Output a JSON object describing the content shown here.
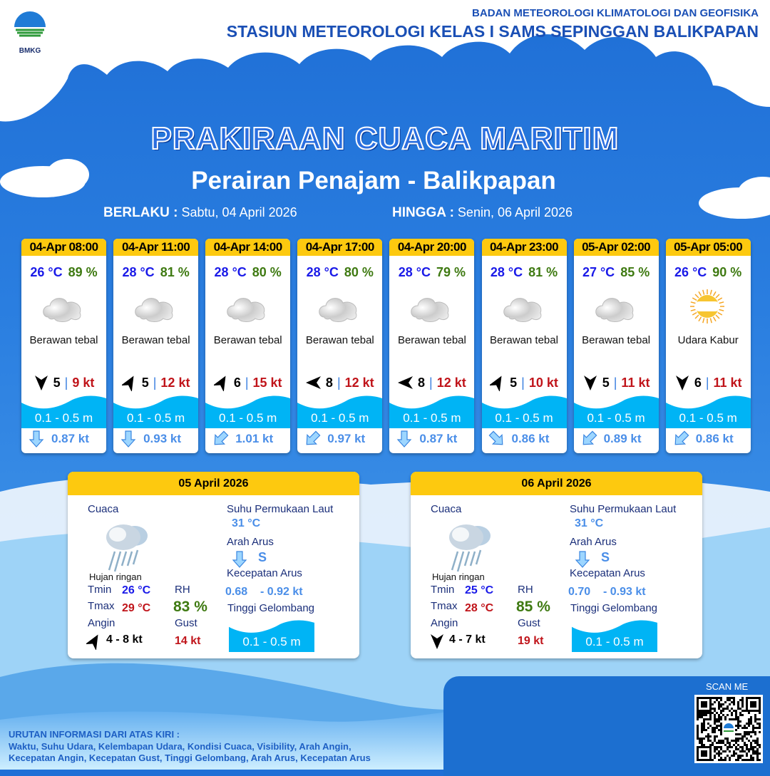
{
  "header": {
    "logo_text": "BMKG",
    "org": "BADAN METEOROLOGI KLIMATOLOGI DAN GEOFISIKA",
    "station": "STASIUN METEOROLOGI KELAS I SAMS SEPINGGAN BALIKPAPAN"
  },
  "title": "PRAKIRAAN CUACA MARITIM",
  "subtitle": "Perairan Penajam - Balikpapan",
  "validity": {
    "from_label": "BERLAKU :",
    "from": "Sabtu, 04 April 2026",
    "to_label": "HINGGA :",
    "to": "Senin, 06 April 2026"
  },
  "colors": {
    "header_yellow": "#fdc90f",
    "temp": "#1a1ae8",
    "rh": "#3f7a12",
    "gust": "#c0141a",
    "wave": "#00b4f5",
    "current": "#4a8ee8"
  },
  "forecasts": [
    {
      "time": "04-Apr 08:00",
      "temp": "26 °C",
      "rh": "89 %",
      "icon": "cloud-icon",
      "cond": "Berawan tebal",
      "wind_dir_deg": 180,
      "wind": "5",
      "gust": "9 kt",
      "wave": "0.1 - 0.5 m",
      "cur_dir_deg": 180,
      "cur": "0.87 kt"
    },
    {
      "time": "04-Apr 11:00",
      "temp": "28 °C",
      "rh": "81 %",
      "icon": "cloud-icon",
      "cond": "Berawan tebal",
      "wind_dir_deg": 30,
      "wind": "5",
      "gust": "12 kt",
      "wave": "0.1 - 0.5 m",
      "cur_dir_deg": 180,
      "cur": "0.93 kt"
    },
    {
      "time": "04-Apr 14:00",
      "temp": "28 °C",
      "rh": "80 %",
      "icon": "cloud-icon",
      "cond": "Berawan tebal",
      "wind_dir_deg": 30,
      "wind": "6",
      "gust": "15 kt",
      "wave": "0.1 - 0.5 m",
      "cur_dir_deg": 225,
      "cur": "1.01 kt"
    },
    {
      "time": "04-Apr 17:00",
      "temp": "28 °C",
      "rh": "80 %",
      "icon": "cloud-icon",
      "cond": "Berawan tebal",
      "wind_dir_deg": 270,
      "wind": "8",
      "gust": "12 kt",
      "wave": "0.1 - 0.5 m",
      "cur_dir_deg": 225,
      "cur": "0.97 kt"
    },
    {
      "time": "04-Apr 20:00",
      "temp": "28 °C",
      "rh": "79 %",
      "icon": "cloud-icon",
      "cond": "Berawan tebal",
      "wind_dir_deg": 270,
      "wind": "8",
      "gust": "12 kt",
      "wave": "0.1 - 0.5 m",
      "cur_dir_deg": 180,
      "cur": "0.87 kt"
    },
    {
      "time": "04-Apr 23:00",
      "temp": "28 °C",
      "rh": "81 %",
      "icon": "cloud-icon",
      "cond": "Berawan tebal",
      "wind_dir_deg": 30,
      "wind": "5",
      "gust": "10 kt",
      "wave": "0.1 - 0.5 m",
      "cur_dir_deg": 135,
      "cur": "0.86 kt"
    },
    {
      "time": "05-Apr 02:00",
      "temp": "27 °C",
      "rh": "85 %",
      "icon": "cloud-icon",
      "cond": "Berawan tebal",
      "wind_dir_deg": 180,
      "wind": "5",
      "gust": "11 kt",
      "wave": "0.1 - 0.5 m",
      "cur_dir_deg": 225,
      "cur": "0.89 kt"
    },
    {
      "time": "05-Apr 05:00",
      "temp": "26 °C",
      "rh": "90 %",
      "icon": "haze-sun-icon",
      "cond": "Udara Kabur",
      "wind_dir_deg": 180,
      "wind": "6",
      "gust": "11 kt",
      "wave": "0.1 - 0.5 m",
      "cur_dir_deg": 225,
      "cur": "0.86 kt"
    }
  ],
  "labels": {
    "cuaca": "Cuaca",
    "sst": "Suhu Permukaan Laut",
    "arah_arus": "Arah Arus",
    "kec_arus": "Kecepatan Arus",
    "tinggi": "Tinggi Gelombang",
    "tmin": "Tmin",
    "tmax": "Tmax",
    "angin": "Angin",
    "rh": "RH",
    "gust": "Gust"
  },
  "daily": [
    {
      "date": "05 April 2026",
      "icon": "light-rain-icon",
      "cond": "Hujan ringan",
      "tmin": "26 °C",
      "tmax": "29 °C",
      "rh": "83 %",
      "wind_dir_deg": 30,
      "wind": "4  - 8 kt",
      "gust": "14 kt",
      "sst": "31 °C",
      "cur_dir": "S",
      "cur_min": "0.68",
      "cur_max": "- 0.92 kt",
      "wave": "0.1 - 0.5 m"
    },
    {
      "date": "06 April 2026",
      "icon": "light-rain-icon",
      "cond": "Hujan ringan",
      "tmin": "25 °C",
      "tmax": "28 °C",
      "rh": "85 %",
      "wind_dir_deg": 180,
      "wind": "4  - 7 kt",
      "gust": "19 kt",
      "sst": "31 °C",
      "cur_dir": "S",
      "cur_min": "0.70",
      "cur_max": "- 0.93 kt",
      "wave": "0.1 - 0.5 m"
    }
  ],
  "footer": {
    "heading": "URUTAN INFORMASI DARI ATAS KIRI :",
    "line1": "Waktu, Suhu Udara, Kelembapan Udara, Kondisi Cuaca, Visibility, Arah Angin,",
    "line2": "Kecepatan Angin, Kecepatan Gust, Tinggi Gelombang, Arah Arus, Kecepatan Arus",
    "scan": "SCAN ME"
  }
}
